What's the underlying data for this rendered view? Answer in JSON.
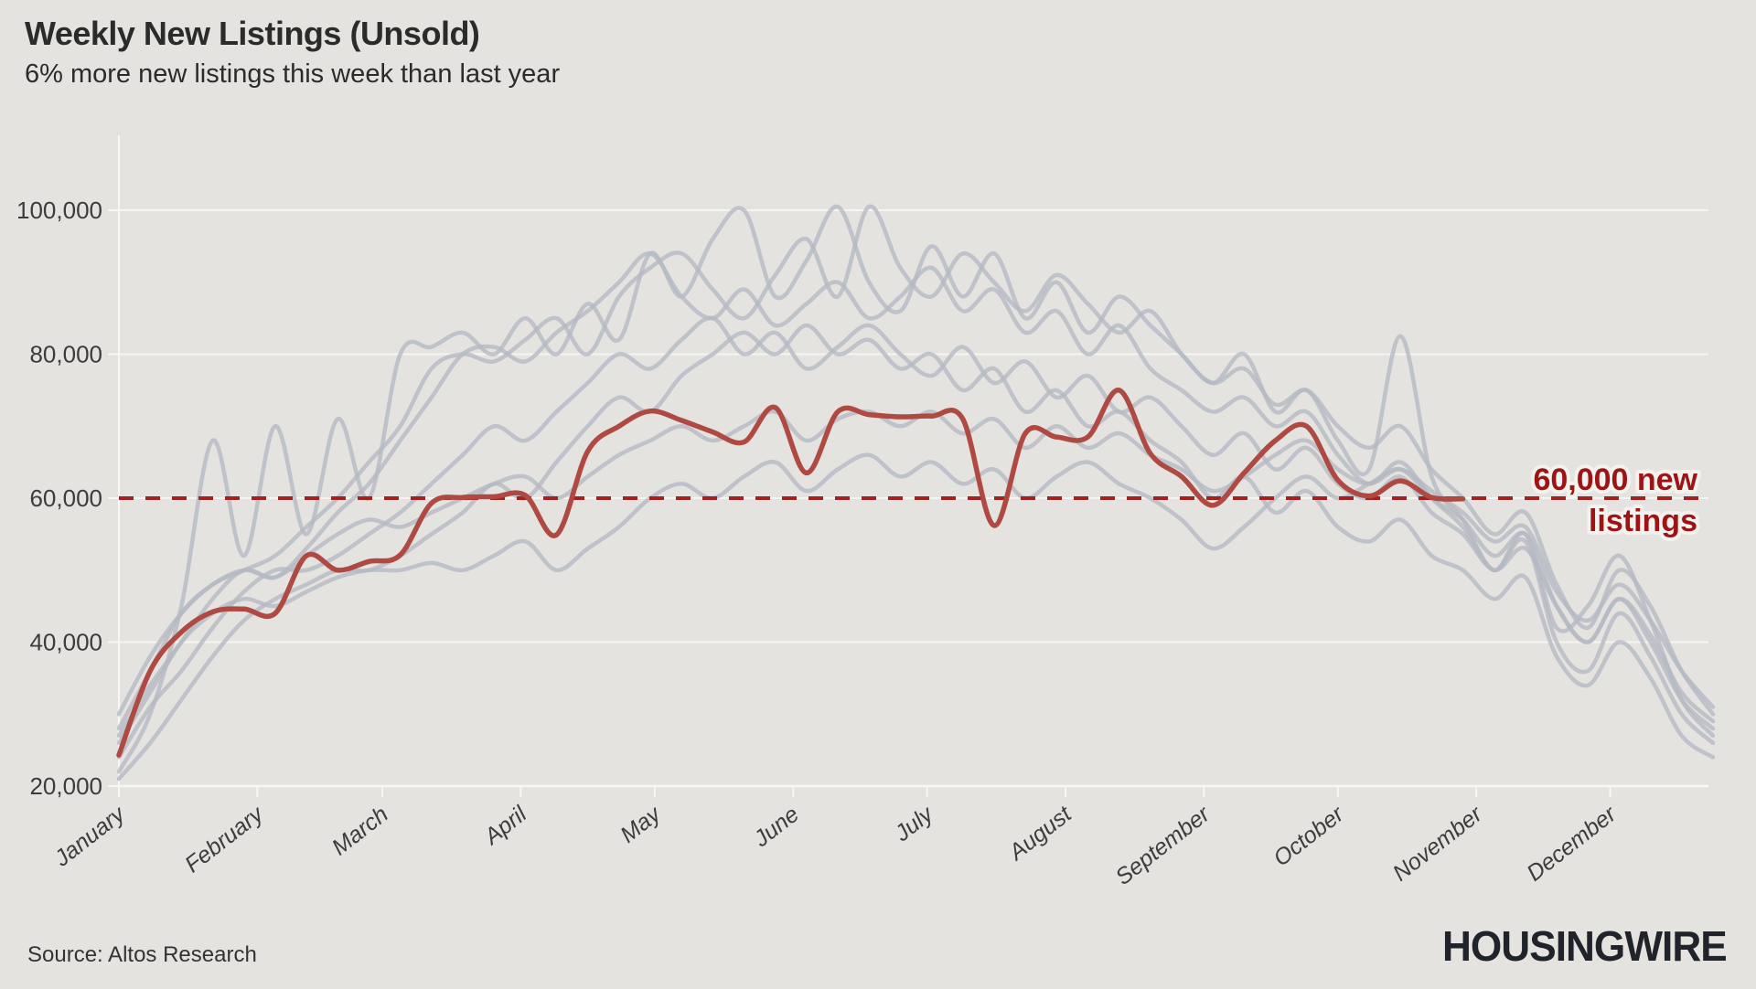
{
  "header": {
    "title": "Weekly New Listings (Unsold)",
    "subtitle": "6% more new listings this week than last year"
  },
  "footer": {
    "source": "Source: Altos Research",
    "brand": "HOUSINGWIRE"
  },
  "colors": {
    "background": "#e5e3e0",
    "grid": "#f6f4f1",
    "axis_line": "#f8f7f4",
    "axis_text": "#3c3c3c",
    "gray_series": "#b5b9c3",
    "red_series": "#ae4a41",
    "reference_red": "#a32121",
    "annotation_red": "#9d1414",
    "halo": "#f4f2ef",
    "title_text": "#2b2b2b",
    "logo": "#20242a"
  },
  "chart_data": {
    "type": "line",
    "title": "Weekly New Listings (Unsold)",
    "subtitle": "6% more new listings this week than last year",
    "x_unit": "weekly, January through December",
    "x_tick_labels": [
      "January",
      "February",
      "March",
      "April",
      "May",
      "June",
      "July",
      "August",
      "September",
      "October",
      "November",
      "December"
    ],
    "y_axis": {
      "min": 20000,
      "max": 100000,
      "ticks": [
        20000,
        40000,
        60000,
        80000,
        100000
      ],
      "tick_labels": [
        "20,000",
        "40,000",
        "60,000",
        "80,000",
        "100,000"
      ]
    },
    "grid": true,
    "legend": "none",
    "reference_line": {
      "value": 60000,
      "label_line1": "60,000 new",
      "label_line2": "listings"
    },
    "series": [
      {
        "name": "current-year",
        "role": "highlight",
        "color_key": "red_series",
        "values": [
          24300,
          36000,
          41400,
          44200,
          44600,
          44000,
          52000,
          50000,
          51200,
          52100,
          59300,
          60100,
          60200,
          60400,
          54900,
          66500,
          70000,
          72100,
          70800,
          69200,
          67800,
          72600,
          63500,
          72000,
          71600,
          71300,
          71400,
          71000,
          56200,
          69000,
          68500,
          68500,
          75000,
          66200,
          63000,
          59000,
          63500,
          68000,
          70000,
          62500,
          60300,
          62400,
          60100,
          59900
        ]
      },
      {
        "name": "prior-year-1",
        "role": "context",
        "color_key": "gray_series",
        "values": [
          22000,
          30000,
          45000,
          68000,
          52000,
          70000,
          55000,
          71000,
          60000,
          80000,
          81000,
          83000,
          80000,
          85000,
          80000,
          87000,
          82000,
          94000,
          88000,
          96000,
          100000,
          88000,
          93000,
          100500,
          90000,
          86000,
          95000,
          88000,
          94000,
          85000,
          90000,
          83000,
          88000,
          84000,
          80000,
          76000,
          80000,
          72000,
          75000,
          68000,
          64000,
          82500,
          63000,
          57000,
          50000,
          55000,
          42000,
          45000,
          52000,
          43000,
          32000,
          27000
        ]
      },
      {
        "name": "prior-year-2",
        "role": "context",
        "color_key": "gray_series",
        "values": [
          30000,
          38000,
          44000,
          48000,
          50000,
          52000,
          56000,
          60000,
          65000,
          70000,
          78000,
          80000,
          79000,
          82000,
          85000,
          80000,
          88000,
          92000,
          94000,
          89000,
          85000,
          91000,
          96000,
          88000,
          100500,
          92000,
          88000,
          94000,
          90000,
          86000,
          91000,
          87000,
          83000,
          86000,
          80000,
          76000,
          78000,
          73000,
          75000,
          70000,
          67000,
          70000,
          64000,
          60000,
          55000,
          58000,
          48000,
          42000,
          50000,
          45000,
          36000,
          30000
        ]
      },
      {
        "name": "prior-year-3",
        "role": "context",
        "color_key": "gray_series",
        "values": [
          27000,
          34000,
          40000,
          46000,
          50000,
          49000,
          53000,
          58000,
          62000,
          68000,
          74000,
          80000,
          81000,
          79000,
          83000,
          86000,
          90000,
          94000,
          88000,
          85000,
          89000,
          84000,
          87000,
          90000,
          85000,
          88000,
          92000,
          86000,
          89000,
          83000,
          86000,
          80000,
          84000,
          78000,
          75000,
          72000,
          74000,
          70000,
          72000,
          66000,
          62000,
          65000,
          60000,
          56000,
          50000,
          54000,
          40000,
          36000,
          44000,
          38000,
          30000,
          26000
        ]
      },
      {
        "name": "prior-year-4",
        "role": "context",
        "color_key": "gray_series",
        "values": [
          24000,
          31000,
          36000,
          42000,
          47000,
          50000,
          50000,
          52000,
          55000,
          58000,
          62000,
          66000,
          70000,
          68000,
          72000,
          76000,
          80000,
          78000,
          82000,
          85000,
          80000,
          83000,
          78000,
          81000,
          84000,
          80000,
          77000,
          81000,
          76000,
          79000,
          74000,
          77000,
          72000,
          74000,
          70000,
          66000,
          69000,
          64000,
          67000,
          62000,
          60000,
          63000,
          58000,
          55000,
          50000,
          53000,
          45000,
          40000,
          46000,
          40000,
          32000,
          28000
        ]
      },
      {
        "name": "prior-year-5",
        "role": "context",
        "color_key": "gray_series",
        "values": [
          21000,
          26000,
          32000,
          38000,
          43000,
          46000,
          48000,
          50000,
          50000,
          52000,
          55000,
          58000,
          62000,
          60000,
          65000,
          70000,
          74000,
          72000,
          77000,
          80000,
          83000,
          80000,
          84000,
          80000,
          82000,
          78000,
          80000,
          75000,
          78000,
          72000,
          75000,
          70000,
          72000,
          68000,
          65000,
          60000,
          63000,
          58000,
          61000,
          56000,
          54000,
          57000,
          52000,
          50000,
          46000,
          49000,
          38000,
          34000,
          40000,
          35000,
          27000,
          24000
        ]
      },
      {
        "name": "prior-year-6",
        "role": "context",
        "color_key": "gray_series",
        "values": [
          26000,
          33000,
          40000,
          44000,
          46000,
          45000,
          47000,
          49000,
          50000,
          50000,
          51000,
          50000,
          52000,
          54000,
          50000,
          53000,
          56000,
          60000,
          62000,
          60000,
          63000,
          65000,
          61000,
          64000,
          66000,
          63000,
          65000,
          62000,
          64000,
          60000,
          63000,
          65000,
          62000,
          60000,
          57000,
          53000,
          56000,
          60000,
          63000,
          60000,
          62000,
          64000,
          60000,
          57000,
          52000,
          55000,
          45000,
          40000,
          46000,
          41000,
          33000,
          29000
        ]
      },
      {
        "name": "prior-year-7",
        "role": "context",
        "color_key": "gray_series",
        "values": [
          28000,
          36000,
          44000,
          48000,
          50000,
          49000,
          52000,
          55000,
          57000,
          56000,
          58000,
          60000,
          62000,
          63000,
          60000,
          63000,
          66000,
          68000,
          70000,
          68000,
          70000,
          72000,
          68000,
          71000,
          72000,
          70000,
          72000,
          69000,
          71000,
          67000,
          70000,
          67000,
          69000,
          66000,
          64000,
          61000,
          63000,
          66000,
          68000,
          64000,
          62000,
          64000,
          61000,
          58000,
          54000,
          56000,
          47000,
          43000,
          48000,
          43000,
          36000,
          31000
        ]
      }
    ]
  }
}
